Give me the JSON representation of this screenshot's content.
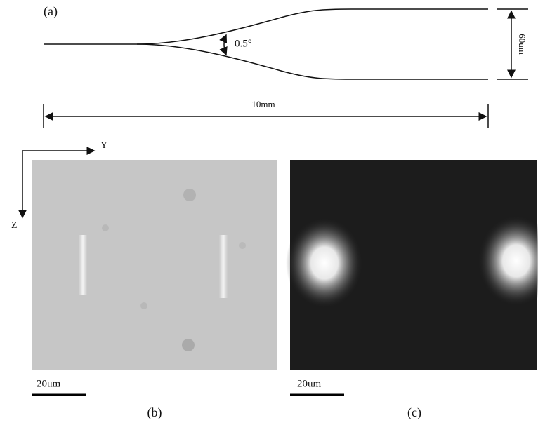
{
  "panel_a": {
    "label": "(a)",
    "angle": "0.5°",
    "width": "60um",
    "length": "10mm"
  },
  "axes": {
    "y": "Y",
    "z": "Z"
  },
  "panel_b": {
    "scale": "20um",
    "label": "(b)"
  },
  "panel_c": {
    "scale": "20um",
    "label": "(c)"
  }
}
